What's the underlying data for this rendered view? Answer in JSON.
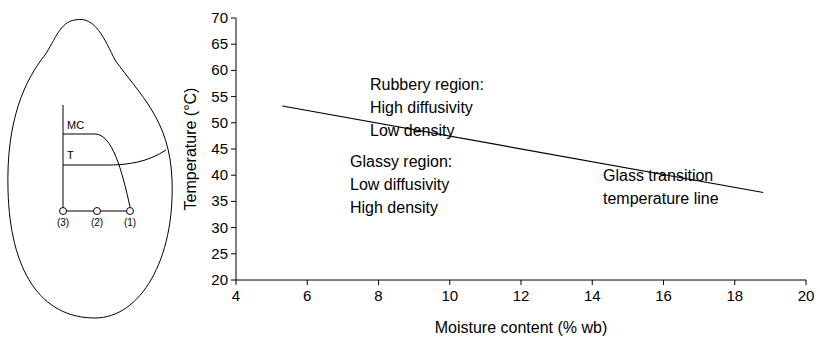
{
  "chart_data": {
    "type": "line",
    "x_label": "Moisture content (% wb)",
    "y_label": "Temperature (°C)",
    "x": [
      5.3,
      18.8
    ],
    "series": [
      {
        "color": "#000000",
        "values": [
          53.2,
          36.7
        ]
      }
    ],
    "xlim": [
      4,
      20
    ],
    "xticks": [
      4,
      6,
      8,
      10,
      12,
      14,
      16,
      18,
      20
    ],
    "ylim": [
      20,
      70
    ],
    "yticks": [
      20,
      25,
      30,
      35,
      40,
      45,
      50,
      55,
      60,
      65,
      70
    ],
    "grid": false,
    "annotations": [
      "Rubbery region:",
      "High diffusivity",
      "Low density",
      "Glassy region:",
      "Low diffusivity",
      "High density",
      "Glass transition",
      "temperature line"
    ]
  },
  "kernel_diagram": {
    "moisture_label": "MC",
    "temperature_label": "T",
    "point_labels": [
      "(3)",
      "(2)",
      "(1)"
    ]
  }
}
